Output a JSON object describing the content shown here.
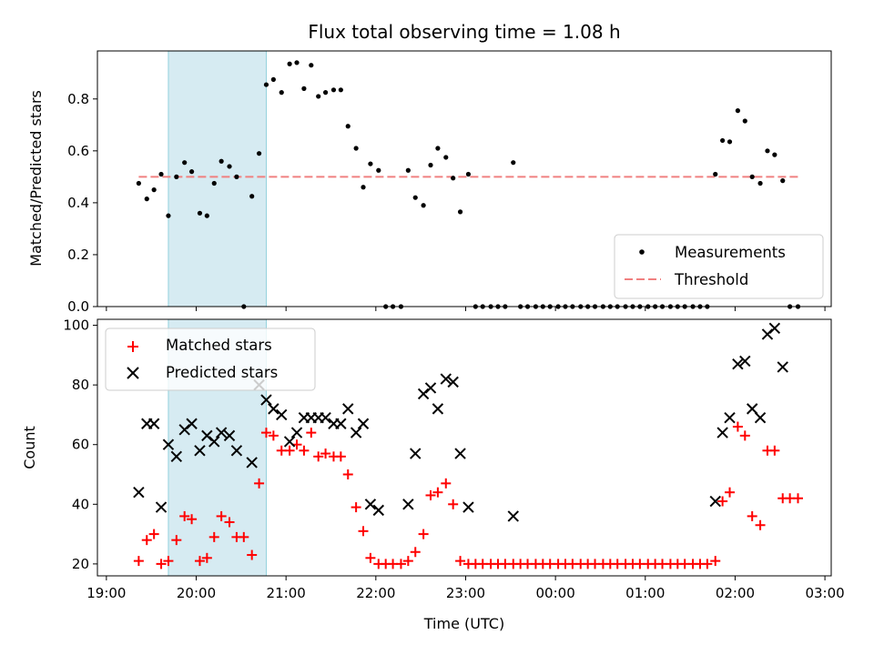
{
  "chart_data": [
    {
      "type": "scatter",
      "title": "Flux total observing time = 1.08 h",
      "ylabel": "Matched/Predicted stars",
      "xlabel": "",
      "ylim": [
        0,
        0.985
      ],
      "yticks": [
        0.0,
        0.2,
        0.4,
        0.6,
        0.8
      ],
      "yticklabels": [
        "0.0",
        "0.2",
        "0.4",
        "0.6",
        "0.8"
      ],
      "x_unit": "hours since 19:00 UTC",
      "xlim": [
        -0.1,
        8.07
      ],
      "highlight_span": [
        0.69,
        1.78
      ],
      "highlight_color": "#ADD8E6",
      "legend": {
        "position": "lower right",
        "entries": [
          "Measurements",
          "Threshold"
        ]
      },
      "series": [
        {
          "name": "Measurements",
          "kind": "scatter",
          "color": "#000000",
          "points": [
            [
              0.36,
              0.475
            ],
            [
              0.45,
              0.415
            ],
            [
              0.53,
              0.45
            ],
            [
              0.61,
              0.51
            ],
            [
              0.69,
              0.35
            ],
            [
              0.78,
              0.5
            ],
            [
              0.87,
              0.555
            ],
            [
              0.95,
              0.52
            ],
            [
              1.04,
              0.36
            ],
            [
              1.12,
              0.35
            ],
            [
              1.2,
              0.475
            ],
            [
              1.28,
              0.56
            ],
            [
              1.37,
              0.54
            ],
            [
              1.45,
              0.5
            ],
            [
              1.53,
              0.0
            ],
            [
              1.62,
              0.425
            ],
            [
              1.7,
              0.59
            ],
            [
              1.78,
              0.855
            ],
            [
              1.86,
              0.875
            ],
            [
              1.95,
              0.825
            ],
            [
              2.04,
              0.935
            ],
            [
              2.12,
              0.94
            ],
            [
              2.2,
              0.84
            ],
            [
              2.28,
              0.93
            ],
            [
              2.36,
              0.81
            ],
            [
              2.44,
              0.825
            ],
            [
              2.53,
              0.835
            ],
            [
              2.61,
              0.835
            ],
            [
              2.69,
              0.695
            ],
            [
              2.78,
              0.61
            ],
            [
              2.86,
              0.46
            ],
            [
              2.94,
              0.55
            ],
            [
              3.03,
              0.525
            ],
            [
              3.11,
              0.0
            ],
            [
              3.19,
              0.0
            ],
            [
              3.28,
              0.0
            ],
            [
              3.36,
              0.525
            ],
            [
              3.44,
              0.42
            ],
            [
              3.53,
              0.39
            ],
            [
              3.61,
              0.545
            ],
            [
              3.69,
              0.61
            ],
            [
              3.78,
              0.575
            ],
            [
              3.86,
              0.495
            ],
            [
              3.94,
              0.365
            ],
            [
              4.03,
              0.51
            ],
            [
              4.11,
              0.0
            ],
            [
              4.19,
              0.0
            ],
            [
              4.28,
              0.0
            ],
            [
              4.36,
              0.0
            ],
            [
              4.44,
              0.0
            ],
            [
              4.53,
              0.555
            ],
            [
              4.61,
              0.0
            ],
            [
              4.69,
              0.0
            ],
            [
              4.78,
              0.0
            ],
            [
              4.86,
              0.0
            ],
            [
              4.94,
              0.0
            ],
            [
              5.03,
              0.0
            ],
            [
              5.11,
              0.0
            ],
            [
              5.19,
              0.0
            ],
            [
              5.28,
              0.0
            ],
            [
              5.36,
              0.0
            ],
            [
              5.44,
              0.0
            ],
            [
              5.53,
              0.0
            ],
            [
              5.61,
              0.0
            ],
            [
              5.69,
              0.0
            ],
            [
              5.78,
              0.0
            ],
            [
              5.86,
              0.0
            ],
            [
              5.94,
              0.0
            ],
            [
              6.03,
              0.0
            ],
            [
              6.11,
              0.0
            ],
            [
              6.19,
              0.0
            ],
            [
              6.28,
              0.0
            ],
            [
              6.36,
              0.0
            ],
            [
              6.44,
              0.0
            ],
            [
              6.53,
              0.0
            ],
            [
              6.61,
              0.0
            ],
            [
              6.69,
              0.0
            ],
            [
              6.78,
              0.51
            ],
            [
              6.86,
              0.64
            ],
            [
              6.94,
              0.635
            ],
            [
              7.03,
              0.755
            ],
            [
              7.11,
              0.715
            ],
            [
              7.19,
              0.5
            ],
            [
              7.28,
              0.475
            ],
            [
              7.36,
              0.6
            ],
            [
              7.44,
              0.585
            ],
            [
              7.53,
              0.485
            ],
            [
              7.61,
              0.0
            ],
            [
              7.7,
              0.0
            ]
          ]
        },
        {
          "name": "Threshold",
          "kind": "dashed-line",
          "color": "#F08080",
          "x": [
            0.36,
            7.7
          ],
          "y": [
            0.5,
            0.5
          ]
        }
      ]
    },
    {
      "type": "scatter",
      "title": "",
      "ylabel": "Count",
      "xlabel": "Time (UTC)",
      "ylim": [
        16,
        102
      ],
      "yticks": [
        20,
        40,
        60,
        80,
        100
      ],
      "yticklabels": [
        "20",
        "40",
        "60",
        "80",
        "100"
      ],
      "x_unit": "hours since 19:00 UTC",
      "xlim": [
        -0.1,
        8.07
      ],
      "xticks": [
        0,
        1,
        2,
        3,
        4,
        5,
        6,
        7,
        8
      ],
      "xticklabels": [
        "19:00",
        "20:00",
        "21:00",
        "22:00",
        "23:00",
        "00:00",
        "01:00",
        "02:00",
        "03:00"
      ],
      "highlight_span": [
        0.69,
        1.78
      ],
      "highlight_color": "#ADD8E6",
      "legend": {
        "position": "upper left",
        "entries": [
          "Matched stars",
          "Predicted stars"
        ]
      },
      "series": [
        {
          "name": "Matched stars",
          "marker": "plus",
          "color": "#FF0000",
          "points": [
            [
              0.36,
              21
            ],
            [
              0.45,
              28
            ],
            [
              0.53,
              30
            ],
            [
              0.61,
              20
            ],
            [
              0.69,
              21
            ],
            [
              0.78,
              28
            ],
            [
              0.87,
              36
            ],
            [
              0.95,
              35
            ],
            [
              1.04,
              21
            ],
            [
              1.12,
              22
            ],
            [
              1.2,
              29
            ],
            [
              1.28,
              36
            ],
            [
              1.37,
              34
            ],
            [
              1.45,
              29
            ],
            [
              1.53,
              29
            ],
            [
              1.62,
              23
            ],
            [
              1.7,
              47
            ],
            [
              1.78,
              64
            ],
            [
              1.86,
              63
            ],
            [
              1.95,
              58
            ],
            [
              2.04,
              58
            ],
            [
              2.12,
              60
            ],
            [
              2.2,
              58
            ],
            [
              2.28,
              64
            ],
            [
              2.36,
              56
            ],
            [
              2.44,
              57
            ],
            [
              2.53,
              56
            ],
            [
              2.61,
              56
            ],
            [
              2.69,
              50
            ],
            [
              2.78,
              39
            ],
            [
              2.86,
              31
            ],
            [
              2.94,
              22
            ],
            [
              3.03,
              20
            ],
            [
              3.11,
              20
            ],
            [
              3.19,
              20
            ],
            [
              3.28,
              20
            ],
            [
              3.36,
              21
            ],
            [
              3.44,
              24
            ],
            [
              3.53,
              30
            ],
            [
              3.61,
              43
            ],
            [
              3.69,
              44
            ],
            [
              3.78,
              47
            ],
            [
              3.86,
              40
            ],
            [
              3.94,
              21
            ],
            [
              4.03,
              20
            ],
            [
              4.11,
              20
            ],
            [
              4.19,
              20
            ],
            [
              4.28,
              20
            ],
            [
              4.36,
              20
            ],
            [
              4.44,
              20
            ],
            [
              4.53,
              20
            ],
            [
              4.61,
              20
            ],
            [
              4.69,
              20
            ],
            [
              4.78,
              20
            ],
            [
              4.86,
              20
            ],
            [
              4.94,
              20
            ],
            [
              5.03,
              20
            ],
            [
              5.11,
              20
            ],
            [
              5.19,
              20
            ],
            [
              5.28,
              20
            ],
            [
              5.36,
              20
            ],
            [
              5.44,
              20
            ],
            [
              5.53,
              20
            ],
            [
              5.61,
              20
            ],
            [
              5.69,
              20
            ],
            [
              5.78,
              20
            ],
            [
              5.86,
              20
            ],
            [
              5.94,
              20
            ],
            [
              6.03,
              20
            ],
            [
              6.11,
              20
            ],
            [
              6.19,
              20
            ],
            [
              6.28,
              20
            ],
            [
              6.36,
              20
            ],
            [
              6.44,
              20
            ],
            [
              6.53,
              20
            ],
            [
              6.61,
              20
            ],
            [
              6.69,
              20
            ],
            [
              6.78,
              21
            ],
            [
              6.86,
              41
            ],
            [
              6.94,
              44
            ],
            [
              7.03,
              66
            ],
            [
              7.11,
              63
            ],
            [
              7.19,
              36
            ],
            [
              7.28,
              33
            ],
            [
              7.36,
              58
            ],
            [
              7.44,
              58
            ],
            [
              7.53,
              42
            ],
            [
              7.61,
              42
            ],
            [
              7.7,
              42
            ]
          ]
        },
        {
          "name": "Predicted stars",
          "marker": "x",
          "color": "#000000",
          "points": [
            [
              0.36,
              44
            ],
            [
              0.45,
              67
            ],
            [
              0.53,
              67
            ],
            [
              0.61,
              39
            ],
            [
              0.69,
              60
            ],
            [
              0.78,
              56
            ],
            [
              0.87,
              65
            ],
            [
              0.95,
              67
            ],
            [
              1.04,
              58
            ],
            [
              1.12,
              63
            ],
            [
              1.2,
              61
            ],
            [
              1.28,
              64
            ],
            [
              1.37,
              63
            ],
            [
              1.45,
              58
            ],
            [
              1.62,
              54
            ],
            [
              1.7,
              80
            ],
            [
              1.78,
              75
            ],
            [
              1.86,
              72
            ],
            [
              1.95,
              70
            ],
            [
              2.04,
              61
            ],
            [
              2.12,
              64
            ],
            [
              2.2,
              69
            ],
            [
              2.28,
              69
            ],
            [
              2.36,
              69
            ],
            [
              2.44,
              69
            ],
            [
              2.53,
              67
            ],
            [
              2.61,
              67
            ],
            [
              2.69,
              72
            ],
            [
              2.78,
              64
            ],
            [
              2.86,
              67
            ],
            [
              2.94,
              40
            ],
            [
              3.03,
              38
            ],
            [
              3.36,
              40
            ],
            [
              3.44,
              57
            ],
            [
              3.53,
              77
            ],
            [
              3.61,
              79
            ],
            [
              3.69,
              72
            ],
            [
              3.78,
              82
            ],
            [
              3.86,
              81
            ],
            [
              3.94,
              57
            ],
            [
              4.03,
              39
            ],
            [
              4.53,
              36
            ],
            [
              6.78,
              41
            ],
            [
              6.86,
              64
            ],
            [
              6.94,
              69
            ],
            [
              7.03,
              87
            ],
            [
              7.11,
              88
            ],
            [
              7.19,
              72
            ],
            [
              7.28,
              69
            ],
            [
              7.36,
              97
            ],
            [
              7.44,
              99
            ],
            [
              7.53,
              86
            ]
          ]
        }
      ]
    }
  ]
}
